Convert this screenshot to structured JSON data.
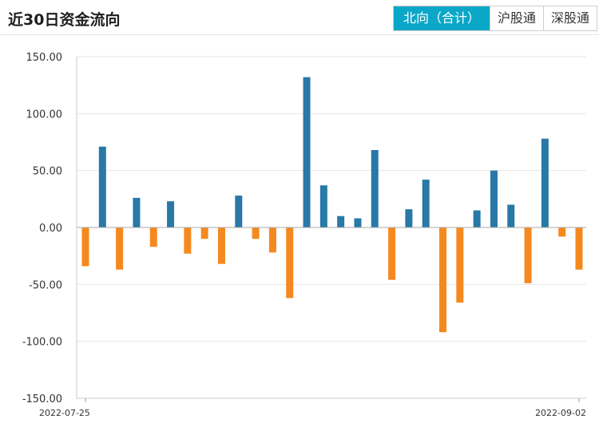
{
  "header": {
    "title": "近30日资金流向",
    "tabs": [
      {
        "label": "北向（合计）",
        "active": true
      },
      {
        "label": "沪股通",
        "active": false
      },
      {
        "label": "深股通",
        "active": false
      }
    ]
  },
  "colors": {
    "accent": "#0ba7c8",
    "positive": "#2878a8",
    "negative": "#f5891f",
    "grid": "#e6e6e6"
  },
  "chart_data": {
    "type": "bar",
    "ylim": [
      -150,
      150
    ],
    "yticks": [
      150,
      100,
      50,
      0,
      -50,
      -100,
      -150
    ],
    "ytick_labels": [
      "150.00",
      "100.00",
      "50.00",
      "0.00",
      "-50.00",
      "-100.00",
      "-150.00"
    ],
    "x_start_label": "2022-07-25",
    "x_end_label": "2022-09-02",
    "values": [
      -34,
      71,
      -37,
      26,
      -17,
      23,
      -23,
      -10,
      -32,
      28,
      -10,
      -22,
      -62,
      132,
      37,
      10,
      8,
      68,
      -46,
      16,
      42,
      -92,
      -66,
      15,
      50,
      20,
      -49,
      78,
      -8,
      -37
    ],
    "grid": true
  }
}
